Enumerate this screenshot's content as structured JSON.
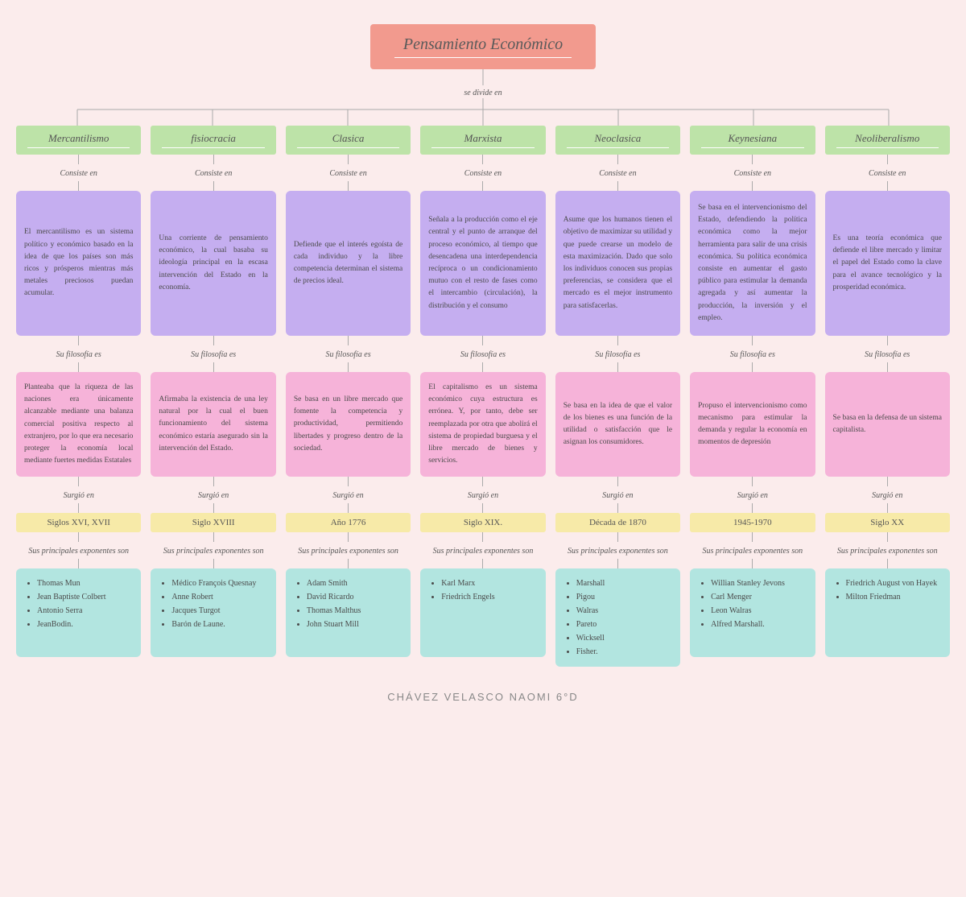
{
  "colors": {
    "background": "#fbecec",
    "title_bg": "#f29a8e",
    "school_bg": "#bde3a8",
    "desc_bg": "#c5aef0",
    "phil_bg": "#f6b3d9",
    "era_bg": "#f7eaa8",
    "exp_bg": "#b2e5e0",
    "line": "#aaaaaa",
    "text": "#4a4a4a"
  },
  "title": "Pensamiento Económico",
  "divide_label": "se divide en",
  "labels": {
    "consists": "Consiste en",
    "philosophy": "Su filosofía es",
    "arose": "Surgió en",
    "exponents": "Sus principales exponentes son"
  },
  "footer": "CHÁVEZ VELASCO NAOMI 6°D",
  "schools": [
    {
      "name": "Mercantilismo",
      "desc": "El mercantilismo es un sistema político y económico basado en la idea de que los países son más ricos y prósperos mientras más metales preciosos puedan acumular.",
      "phil": "Planteaba que la riqueza de las naciones era únicamente alcanzable mediante una balanza comercial positiva respecto al extranjero, por lo que era necesario proteger la economía local mediante fuertes medidas Estatales",
      "era": "Siglos XVI, XVII",
      "exp": [
        "Thomas Mun",
        "Jean Baptiste Colbert",
        "Antonio Serra",
        "JeanBodin."
      ]
    },
    {
      "name": "fisiocracia",
      "desc": "Una corriente de pensamiento económico, la cual basaba su ideología principal en la escasa intervención del Estado en la economía.",
      "phil": "Afirmaba la existencia de una ley natural por la cual el buen funcionamiento del sistema económico estaría asegurado sin la intervención del Estado.",
      "era": "Siglo XVIII",
      "exp": [
        "Médico François Quesnay",
        "Anne Robert",
        "Jacques Turgot",
        "Barón de Laune."
      ]
    },
    {
      "name": "Clasica",
      "desc": "Defiende que el interés egoísta de cada individuo y la libre competencia determinan el sistema de precios ideal.",
      "phil": "Se basa en un libre mercado que fomente la competencia y productividad, permitiendo libertades y progreso dentro de la sociedad.",
      "era": "Año 1776",
      "exp": [
        "Adam Smith",
        "David Ricardo",
        "Thomas Malthus",
        "John Stuart Mill"
      ]
    },
    {
      "name": "Marxista",
      "desc": "Señala a la producción como el eje central y el punto de arranque del proceso económico, al tiempo que desencadena una interdependencia recíproca o un condicionamiento mutuo con el resto de fases como el intercambio (circulación), la distribución y el consumo",
      "phil": "El capitalismo es un sistema económico cuya estructura es errónea. Y, por tanto, debe ser reemplazada por otra que abolirá el sistema de propiedad burguesa y el libre mercado de bienes y servicios.",
      "era": "Siglo XIX.",
      "exp": [
        "Karl Marx",
        "Friedrich Engels"
      ]
    },
    {
      "name": "Neoclasica",
      "desc": "Asume que los humanos tienen el objetivo de maximizar su utilidad y que puede crearse un modelo de esta maximización. Dado que solo los individuos conocen sus propias preferencias, se considera que el mercado es el mejor instrumento para satisfacerlas.",
      "phil": "Se basa en la idea de que el valor de los bienes es una función de la utilidad o satisfacción que le asignan los consumidores.",
      "era": "Década de 1870",
      "exp": [
        "Marshall",
        "Pigou",
        "Walras",
        "Pareto",
        "Wicksell",
        "Fisher."
      ]
    },
    {
      "name": "Keynesiana",
      "desc": "Se basa en el intervencionismo del Estado, defendiendo la política económica como la mejor herramienta para salir de una crisis económica. Su política económica consiste en aumentar el gasto público para estimular la demanda agregada y así aumentar la producción, la inversión y el empleo.",
      "phil": "Propuso el intervencionismo como mecanismo para estimular la demanda y regular la economía en momentos de depresión",
      "era": "1945-1970",
      "exp": [
        "Willian Stanley Jevons",
        "Carl Menger",
        "Leon Walras",
        "Alfred Marshall."
      ]
    },
    {
      "name": "Neoliberalismo",
      "desc": "Es una teoría económica que defiende el libre mercado y limitar el papel del Estado como la clave para el avance tecnológico y la prosperidad económica.",
      "phil": "Se basa en la defensa de un sistema capitalista.",
      "era": "Siglo XX",
      "exp": [
        "Friedrich August von Hayek",
        "Milton Friedman"
      ]
    }
  ]
}
